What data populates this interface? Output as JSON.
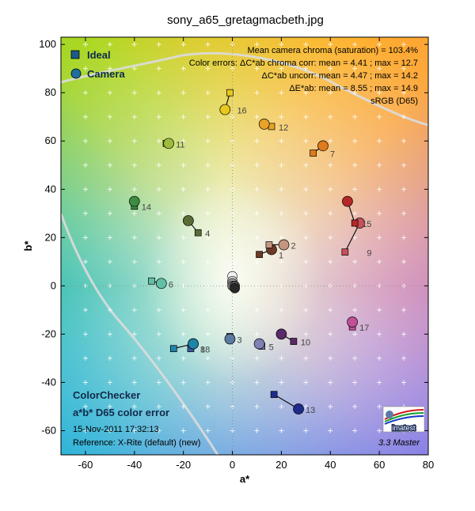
{
  "title": "sony_a65_gretagmacbeth.jpg",
  "legend": {
    "ideal": "Ideal",
    "camera": "Camera",
    "ideal_color": "#1a5a8a",
    "camera_color": "#1f6e9e"
  },
  "stats": {
    "line1": "Mean camera chroma (saturation) = 103.4%",
    "line2": "Color errors: ΔC*ab chroma corr:  mean = 4.41 ;  max = 12.7",
    "line3": "ΔC*ab uncorr:  mean = 4.47 ;  max = 14.2",
    "line4": "ΔE*ab:  mean = 8.55 ;  max = 14.9",
    "line5": "sRGB (D65)"
  },
  "bottom_info": {
    "name": "ColorChecker",
    "subtitle": "a*b* D65 color error",
    "date": "15-Nov-2011 17:32:13",
    "reference": "Reference: X-Rite (default) (new)"
  },
  "logo": {
    "text": "imatest",
    "version": "3.3  Master"
  },
  "chart_data": {
    "type": "scatter",
    "xlabel": "a*",
    "ylabel": "b*",
    "xlim": [
      -70,
      80
    ],
    "ylim": [
      -70,
      103
    ],
    "xticks": [
      -60,
      -40,
      -20,
      0,
      20,
      40,
      60,
      80
    ],
    "yticks": [
      -60,
      -40,
      -20,
      0,
      20,
      40,
      60,
      80,
      100
    ],
    "grid": true,
    "legend_position": "top-left",
    "patches": [
      {
        "n": "1",
        "ideal": [
          11,
          13
        ],
        "camera": [
          16,
          15
        ],
        "color": "#6e3a28"
      },
      {
        "n": "2",
        "ideal": [
          15,
          17
        ],
        "camera": [
          21,
          17
        ],
        "color": "#c49682"
      },
      {
        "n": "3",
        "ideal": [
          -1,
          -21
        ],
        "camera": [
          -1,
          -22
        ],
        "color": "#5a7aa0"
      },
      {
        "n": "4",
        "ideal": [
          -14,
          22
        ],
        "camera": [
          -18,
          27
        ],
        "color": "#5a6c35"
      },
      {
        "n": "5",
        "ideal": [
          12,
          -25
        ],
        "camera": [
          11,
          -24
        ],
        "color": "#8080b4"
      },
      {
        "n": "6",
        "ideal": [
          -33,
          2
        ],
        "camera": [
          -29,
          1
        ],
        "color": "#62c0a8"
      },
      {
        "n": "7",
        "ideal": [
          33,
          55
        ],
        "camera": [
          37,
          58
        ],
        "color": "#e07a1e"
      },
      {
        "n": "8",
        "ideal": [
          -17,
          -26
        ],
        "camera": [
          -16,
          -24
        ],
        "color": "#3a5aa8"
      },
      {
        "n": "9",
        "ideal": [
          46,
          14
        ],
        "camera": [
          52,
          26
        ],
        "color": "#c8505a"
      },
      {
        "n": "10",
        "ideal": [
          25,
          -23
        ],
        "camera": [
          20,
          -20
        ],
        "color": "#5a2a6a"
      },
      {
        "n": "11",
        "ideal": [
          -27,
          59
        ],
        "camera": [
          -26,
          59
        ],
        "color": "#9ebc3c"
      },
      {
        "n": "12",
        "ideal": [
          16,
          66
        ],
        "camera": [
          13,
          67
        ],
        "color": "#e8a228"
      },
      {
        "n": "13",
        "ideal": [
          17,
          -45
        ],
        "camera": [
          27,
          -51
        ],
        "color": "#1e2a8c"
      },
      {
        "n": "14",
        "ideal": [
          -40,
          33
        ],
        "camera": [
          -40,
          35
        ],
        "color": "#3e8c42"
      },
      {
        "n": "15",
        "ideal": [
          50,
          26
        ],
        "camera": [
          47,
          35
        ],
        "color": "#b42828"
      },
      {
        "n": "16",
        "ideal": [
          -1,
          80
        ],
        "camera": [
          -3,
          73
        ],
        "color": "#e8c81e"
      },
      {
        "n": "17",
        "ideal": [
          49,
          -17
        ],
        "camera": [
          49,
          -15
        ],
        "color": "#c25096"
      },
      {
        "n": "18",
        "ideal": [
          -24,
          -26
        ],
        "camera": [
          -16,
          -24
        ],
        "color": "#1e84a8"
      }
    ],
    "neutrals": [
      {
        "a": 0,
        "b": 4,
        "color": "#f2f2f2"
      },
      {
        "a": 0,
        "b": 2,
        "color": "#c8c8c8"
      },
      {
        "a": 0,
        "b": 1,
        "color": "#a0a0a0"
      },
      {
        "a": 0,
        "b": 0,
        "color": "#787878"
      },
      {
        "a": 1,
        "b": 0,
        "color": "#505050"
      },
      {
        "a": 1,
        "b": -1,
        "color": "#282828"
      }
    ]
  }
}
